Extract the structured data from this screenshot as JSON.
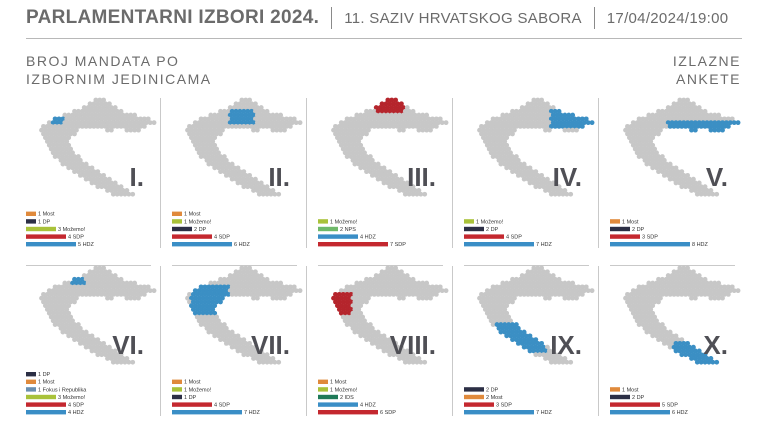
{
  "header": {
    "title": "PARLAMENTARNI IZBORI 2024.",
    "saziv": "11. SAZIV HRVATSKOG SABORA",
    "date": "17/04/2024/19:00"
  },
  "subtitle": {
    "line1": "BROJ MANDATA PO",
    "line2": "IZBORNIM JEDINICAMA"
  },
  "badge": {
    "line1": "IZLAZNE",
    "line2": "ANKETE"
  },
  "colors": {
    "map_dot": "#c7c7c7",
    "blue_highlight": "#3b8fc4",
    "red_highlight": "#b5252c",
    "Most": "#e08a3c",
    "DP": "#2c2f45",
    "Možemo!": "#a9c23a",
    "SDP": "#c4282f",
    "HDZ": "#3a8ec6",
    "NPS": "#6fb96a",
    "Fokus i Republika": "#6a8fb0",
    "IDS": "#1f7a58"
  },
  "chart_data": [
    {
      "type": "bar",
      "roman": "I.",
      "highlight": "blue",
      "bars": [
        {
          "label": "1 Most",
          "party": "Most",
          "value": 1
        },
        {
          "label": "1 DP",
          "party": "DP",
          "value": 1
        },
        {
          "label": "3 Možemo!",
          "party": "Možemo!",
          "value": 3
        },
        {
          "label": "4 SDP",
          "party": "SDP",
          "value": 4
        },
        {
          "label": "5 HDZ",
          "party": "HDZ",
          "value": 5
        }
      ]
    },
    {
      "type": "bar",
      "roman": "II.",
      "highlight": "blue",
      "bars": [
        {
          "label": "1 Most",
          "party": "Most",
          "value": 1
        },
        {
          "label": "1 Možemo!",
          "party": "Možemo!",
          "value": 1
        },
        {
          "label": "2 DP",
          "party": "DP",
          "value": 2
        },
        {
          "label": "4 SDP",
          "party": "SDP",
          "value": 4
        },
        {
          "label": "6 HDZ",
          "party": "HDZ",
          "value": 6
        }
      ]
    },
    {
      "type": "bar",
      "roman": "III.",
      "highlight": "red",
      "bars": [
        {
          "label": "1 Možemo!",
          "party": "Možemo!",
          "value": 1
        },
        {
          "label": "2 NPS",
          "party": "NPS",
          "value": 2
        },
        {
          "label": "4 HDZ",
          "party": "HDZ",
          "value": 4
        },
        {
          "label": "7 SDP",
          "party": "SDP",
          "value": 7
        }
      ]
    },
    {
      "type": "bar",
      "roman": "IV.",
      "highlight": "blue",
      "bars": [
        {
          "label": "1 Možemo!",
          "party": "Možemo!",
          "value": 1
        },
        {
          "label": "2 DP",
          "party": "DP",
          "value": 2
        },
        {
          "label": "4 SDP",
          "party": "SDP",
          "value": 4
        },
        {
          "label": "7 HDZ",
          "party": "HDZ",
          "value": 7
        }
      ]
    },
    {
      "type": "bar",
      "roman": "V.",
      "highlight": "blue",
      "bars": [
        {
          "label": "1 Most",
          "party": "Most",
          "value": 1
        },
        {
          "label": "2 DP",
          "party": "DP",
          "value": 2
        },
        {
          "label": "3 SDP",
          "party": "SDP",
          "value": 3
        },
        {
          "label": "8 HDZ",
          "party": "HDZ",
          "value": 8
        }
      ]
    },
    {
      "type": "bar",
      "roman": "VI.",
      "highlight": "blue",
      "bars": [
        {
          "label": "1 DP",
          "party": "DP",
          "value": 1
        },
        {
          "label": "1 Most",
          "party": "Most",
          "value": 1
        },
        {
          "label": "1 Fokus i Republika",
          "party": "Fokus i Republika",
          "value": 1
        },
        {
          "label": "3 Možemo!",
          "party": "Možemo!",
          "value": 3
        },
        {
          "label": "4 SDP",
          "party": "SDP",
          "value": 4
        },
        {
          "label": "4 HDZ",
          "party": "HDZ",
          "value": 4
        }
      ]
    },
    {
      "type": "bar",
      "roman": "VII.",
      "highlight": "blue",
      "bars": [
        {
          "label": "1 Most",
          "party": "Most",
          "value": 1
        },
        {
          "label": "1 Možemo!",
          "party": "Možemo!",
          "value": 1
        },
        {
          "label": "1 DP",
          "party": "DP",
          "value": 1
        },
        {
          "label": "4 SDP",
          "party": "SDP",
          "value": 4
        },
        {
          "label": "7 HDZ",
          "party": "HDZ",
          "value": 7
        }
      ]
    },
    {
      "type": "bar",
      "roman": "VIII.",
      "highlight": "red",
      "bars": [
        {
          "label": "1 Most",
          "party": "Most",
          "value": 1
        },
        {
          "label": "1 Možemo!",
          "party": "Možemo!",
          "value": 1
        },
        {
          "label": "2 IDS",
          "party": "IDS",
          "value": 2
        },
        {
          "label": "4 HDZ",
          "party": "HDZ",
          "value": 4
        },
        {
          "label": "6 SDP",
          "party": "SDP",
          "value": 6
        }
      ]
    },
    {
      "type": "bar",
      "roman": "IX.",
      "highlight": "blue",
      "bars": [
        {
          "label": "2 DP",
          "party": "DP",
          "value": 2
        },
        {
          "label": "2 Most",
          "party": "Most",
          "value": 2
        },
        {
          "label": "3 SDP",
          "party": "SDP",
          "value": 3
        },
        {
          "label": "7 HDZ",
          "party": "HDZ",
          "value": 7
        }
      ]
    },
    {
      "type": "bar",
      "roman": "X.",
      "highlight": "blue",
      "bars": [
        {
          "label": "1 Most",
          "party": "Most",
          "value": 1
        },
        {
          "label": "2 DP",
          "party": "DP",
          "value": 2
        },
        {
          "label": "5 SDP",
          "party": "SDP",
          "value": 5
        },
        {
          "label": "6 HDZ",
          "party": "HDZ",
          "value": 6
        }
      ]
    }
  ]
}
